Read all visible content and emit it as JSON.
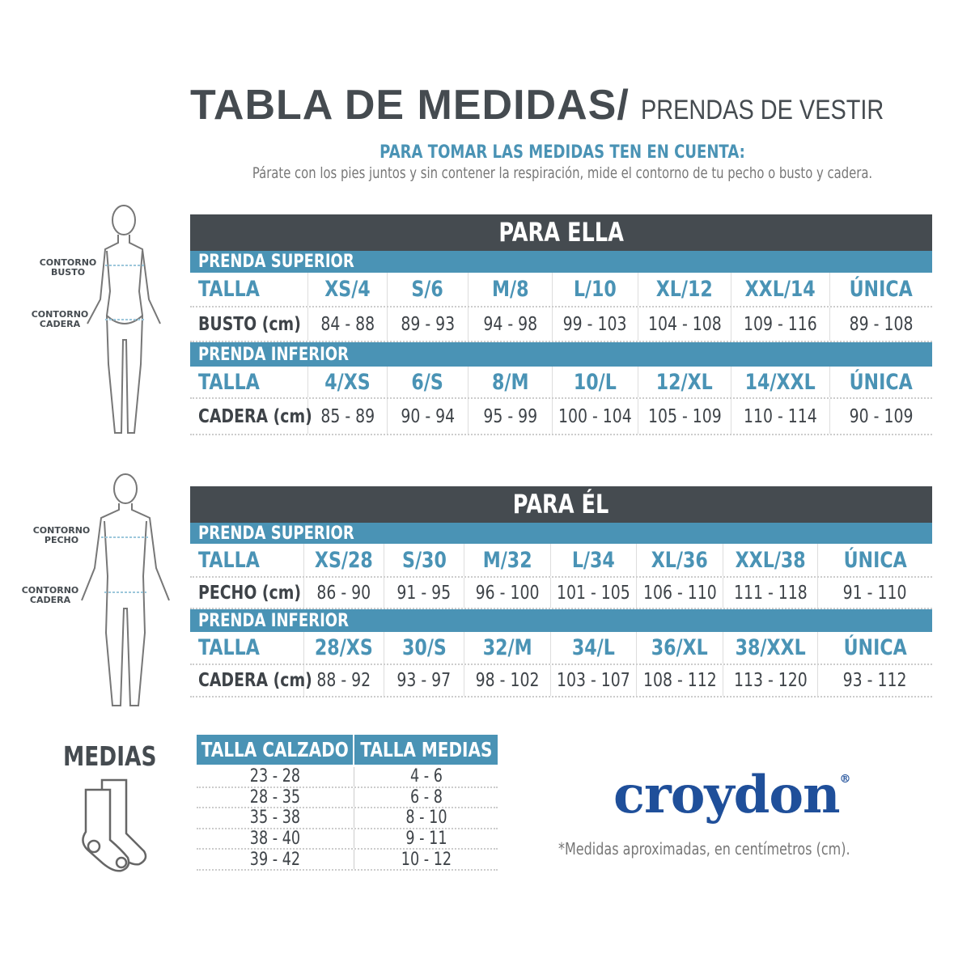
{
  "header": {
    "title": "TABLA DE MEDIDAS/",
    "subtitle": "PRENDAS DE VESTIR",
    "hint_heading": "PARA TOMAR LAS MEDIDAS TEN EN CUENTA:",
    "hint_text": "Párate con los pies juntos y sin contener la respiración, mide el contorno de tu pecho o busto y cadera."
  },
  "figures": {
    "female": {
      "label1": "CONTORNO BUSTO",
      "label2": "CONTORNO CADERA"
    },
    "male": {
      "label1": "CONTORNO PECHO",
      "label2": "CONTORNO CADERA"
    }
  },
  "ella": {
    "title": "PARA ELLA",
    "superior": {
      "section": "PRENDA SUPERIOR",
      "talla_label": "TALLA",
      "sizes": [
        "XS/4",
        "S/6",
        "M/8",
        "L/10",
        "XL/12",
        "XXL/14",
        "ÚNICA"
      ],
      "measure_label": "BUSTO (cm)",
      "values": [
        "84 - 88",
        "89 - 93",
        "94 - 98",
        "99 - 103",
        "104 - 108",
        "109 - 116",
        "89 - 108"
      ]
    },
    "inferior": {
      "section": "PRENDA INFERIOR",
      "talla_label": "TALLA",
      "sizes": [
        "4/XS",
        "6/S",
        "8/M",
        "10/L",
        "12/XL",
        "14/XXL",
        "ÚNICA"
      ],
      "measure_label": "CADERA (cm)",
      "values": [
        "85 - 89",
        "90 - 94",
        "95 - 99",
        "100 - 104",
        "105 - 109",
        "110 - 114",
        "90 - 109"
      ]
    }
  },
  "el": {
    "title": "PARA ÉL",
    "superior": {
      "section": "PRENDA SUPERIOR",
      "talla_label": "TALLA",
      "sizes": [
        "XS/28",
        "S/30",
        "M/32",
        "L/34",
        "XL/36",
        "XXL/38",
        "ÚNICA"
      ],
      "measure_label": "PECHO (cm)",
      "values": [
        "86 - 90",
        "91 - 95",
        "96 - 100",
        "101 - 105",
        "106 - 110",
        "111 - 118",
        "91 - 110"
      ]
    },
    "inferior": {
      "section": "PRENDA INFERIOR",
      "talla_label": "TALLA",
      "sizes": [
        "28/XS",
        "30/S",
        "32/M",
        "34/L",
        "36/XL",
        "38/XXL",
        "ÚNICA"
      ],
      "measure_label": "CADERA (cm)",
      "values": [
        "88 - 92",
        "93 - 97",
        "98 - 102",
        "103 - 107",
        "108 - 112",
        "113 - 120",
        "93 - 112"
      ]
    }
  },
  "medias": {
    "title": "MEDIAS",
    "headers": [
      "TALLA CALZADO",
      "TALLA MEDIAS"
    ],
    "rows": [
      [
        "23 - 28",
        "4 - 6"
      ],
      [
        "28 - 35",
        "6 - 8"
      ],
      [
        "35 - 38",
        "8 - 10"
      ],
      [
        "38 - 40",
        "9 - 11"
      ],
      [
        "39 - 42",
        "10 - 12"
      ]
    ]
  },
  "brand": {
    "logo": "croydon",
    "registered": "®"
  },
  "note": "*Medidas aproximadas, en centímetros (cm).",
  "colors": {
    "dark": "#454b50",
    "blue": "#4a93b5",
    "brand": "#1f4f9a"
  }
}
